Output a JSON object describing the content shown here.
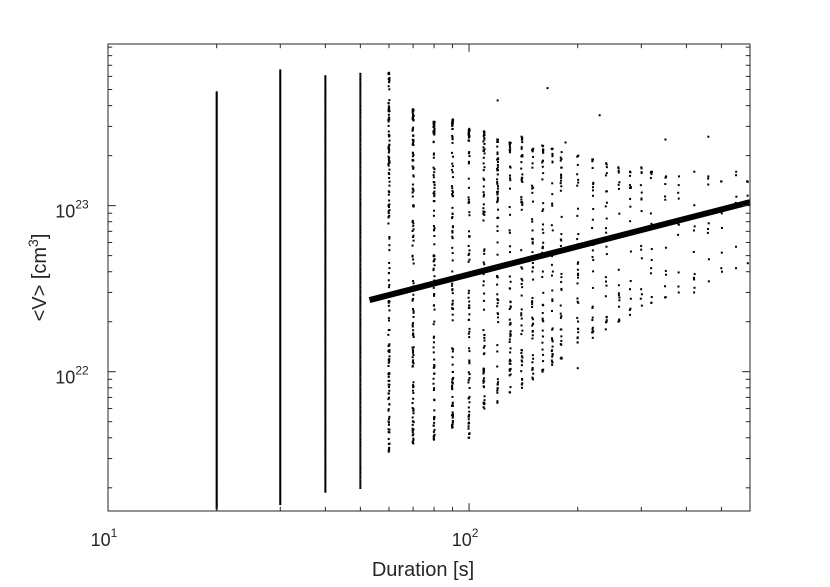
{
  "chart_data": {
    "type": "scatter",
    "title": "",
    "xlabel": "Duration [s]",
    "ylabel": "<V> [cm³]",
    "xscale": "log",
    "yscale": "log",
    "xlim": [
      10,
      600
    ],
    "ylim": [
      1.45e+21,
      9.4e+23
    ],
    "grid": false,
    "legend": "none",
    "x_ticks": [
      {
        "value": 10,
        "base": "10",
        "exp": "1"
      },
      {
        "value": 100,
        "base": "10",
        "exp": "2"
      }
    ],
    "y_ticks": [
      {
        "value": 1e+22,
        "base": "10",
        "exp": "22"
      },
      {
        "value": 1e+23,
        "base": "10",
        "exp": "23"
      }
    ],
    "scatter_columns": [
      {
        "x": 20,
        "ymin": 1.5e+21,
        "ymax": 4.8e+23,
        "n": 260
      },
      {
        "x": 30,
        "ymin": 1.6e+21,
        "ymax": 6.5e+23,
        "n": 220
      },
      {
        "x": 40,
        "ymin": 1.9e+21,
        "ymax": 6e+23,
        "n": 190
      },
      {
        "x": 50,
        "ymin": 2e+21,
        "ymax": 6.2e+23,
        "n": 170
      },
      {
        "x": 60,
        "ymin": 3.3e+21,
        "ymax": 6.3e+23,
        "n": 150
      },
      {
        "x": 70,
        "ymin": 3.7e+21,
        "ymax": 3.8e+23,
        "n": 130
      },
      {
        "x": 80,
        "ymin": 3.9e+21,
        "ymax": 3.2e+23,
        "n": 110
      },
      {
        "x": 90,
        "ymin": 4.6e+21,
        "ymax": 3.3e+23,
        "n": 100
      },
      {
        "x": 100,
        "ymin": 4e+21,
        "ymax": 2.9e+23,
        "n": 90
      },
      {
        "x": 110,
        "ymin": 6e+21,
        "ymax": 2.8e+23,
        "n": 80
      },
      {
        "x": 120,
        "ymin": 6.5e+21,
        "ymax": 2.5e+23,
        "n": 70
      },
      {
        "x": 130,
        "ymin": 7.5e+21,
        "ymax": 2.4e+23,
        "n": 60
      },
      {
        "x": 140,
        "ymin": 8e+21,
        "ymax": 2.6e+23,
        "n": 55
      },
      {
        "x": 150,
        "ymin": 9e+21,
        "ymax": 2.2e+23,
        "n": 50
      },
      {
        "x": 160,
        "ymin": 1e+22,
        "ymax": 2.3e+23,
        "n": 45
      },
      {
        "x": 170,
        "ymin": 1.1e+22,
        "ymax": 2.2e+23,
        "n": 40
      },
      {
        "x": 180,
        "ymin": 1.2e+22,
        "ymax": 2.1e+23,
        "n": 36
      },
      {
        "x": 200,
        "ymin": 1.5e+22,
        "ymax": 2e+23,
        "n": 32
      },
      {
        "x": 220,
        "ymin": 1.6e+22,
        "ymax": 1.9e+23,
        "n": 28
      },
      {
        "x": 240,
        "ymin": 1.8e+22,
        "ymax": 1.8e+23,
        "n": 24
      },
      {
        "x": 260,
        "ymin": 2e+22,
        "ymax": 1.7e+23,
        "n": 20
      },
      {
        "x": 280,
        "ymin": 2.2e+22,
        "ymax": 1.6e+23,
        "n": 18
      },
      {
        "x": 300,
        "ymin": 2.5e+22,
        "ymax": 1.7e+23,
        "n": 16
      },
      {
        "x": 320,
        "ymin": 2.6e+22,
        "ymax": 1.6e+23,
        "n": 14
      },
      {
        "x": 350,
        "ymin": 2.8e+22,
        "ymax": 1.5e+23,
        "n": 12
      },
      {
        "x": 380,
        "ymin": 3e+22,
        "ymax": 1.5e+23,
        "n": 10
      },
      {
        "x": 420,
        "ymin": 3.2e+22,
        "ymax": 1.6e+23,
        "n": 9
      },
      {
        "x": 460,
        "ymin": 3.5e+22,
        "ymax": 1.5e+23,
        "n": 8
      },
      {
        "x": 500,
        "ymin": 4e+22,
        "ymax": 1.4e+23,
        "n": 7
      },
      {
        "x": 550,
        "ymin": 4.2e+22,
        "ymax": 1.6e+23,
        "n": 6
      },
      {
        "x": 590,
        "ymin": 4.5e+22,
        "ymax": 1.4e+23,
        "n": 5
      }
    ],
    "outliers": [
      {
        "x": 120,
        "y": 4.3e+23
      },
      {
        "x": 165,
        "y": 5.1e+23
      },
      {
        "x": 230,
        "y": 3.5e+23
      },
      {
        "x": 185,
        "y": 2.4e+23
      },
      {
        "x": 350,
        "y": 2.5e+23
      },
      {
        "x": 460,
        "y": 2.6e+23
      },
      {
        "x": 200,
        "y": 1.05e+22
      },
      {
        "x": 320,
        "y": 2.6e+22
      },
      {
        "x": 420,
        "y": 3e+22
      }
    ],
    "fit_line": {
      "points": [
        [
          53,
          2.7e+22
        ],
        [
          600,
          1.05e+23
        ]
      ]
    }
  }
}
